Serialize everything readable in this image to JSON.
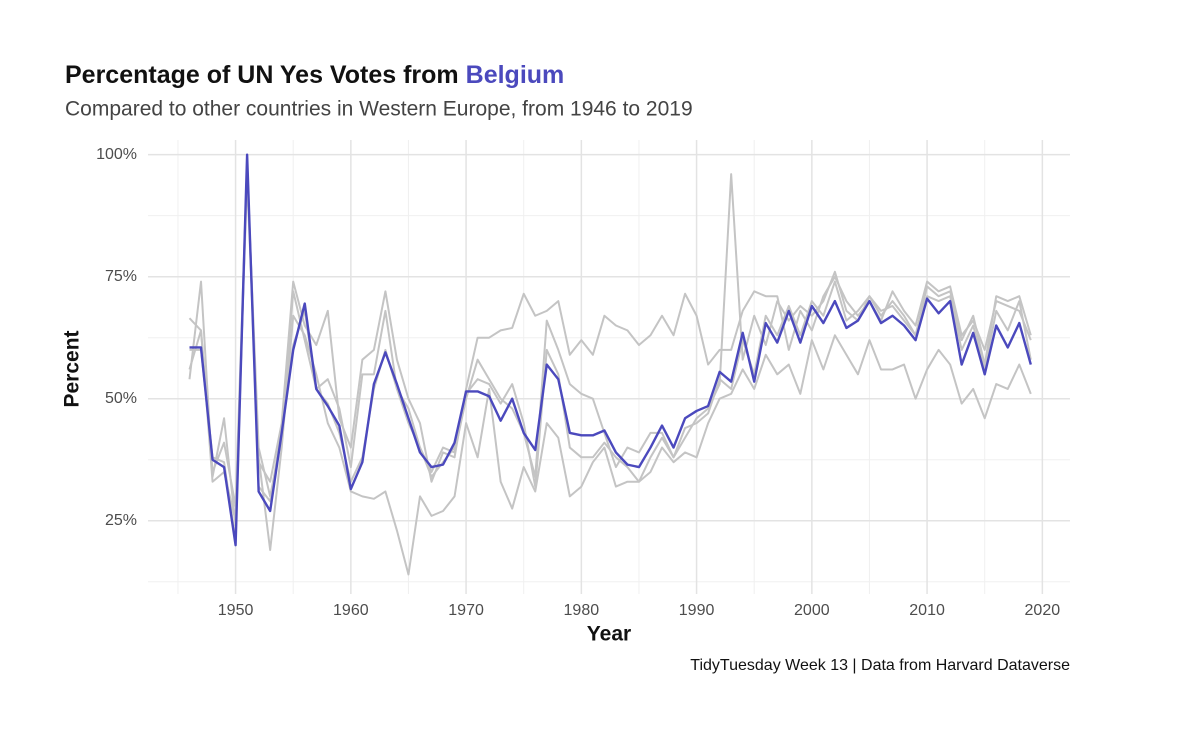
{
  "chart_data": {
    "type": "line",
    "title": "Percentage of UN Yes Votes from",
    "subtitle": "Compared to other countries in Western Europe, from 1946 to 2019",
    "x_label": "Year",
    "y_label": "Percent",
    "caption": "TidyTuesday Week 13 | Data from Harvard Dataverse",
    "x": [
      1946,
      1947,
      1948,
      1949,
      1950,
      1951,
      1952,
      1953,
      1954,
      1955,
      1956,
      1957,
      1958,
      1959,
      1960,
      1961,
      1962,
      1963,
      1964,
      1965,
      1966,
      1967,
      1968,
      1969,
      1970,
      1971,
      1972,
      1973,
      1974,
      1975,
      1976,
      1977,
      1978,
      1979,
      1980,
      1981,
      1982,
      1983,
      1984,
      1985,
      1986,
      1987,
      1988,
      1989,
      1990,
      1991,
      1992,
      1993,
      1994,
      1995,
      1996,
      1997,
      1998,
      1999,
      2000,
      2001,
      2002,
      2003,
      2004,
      2005,
      2006,
      2007,
      2008,
      2009,
      2010,
      2011,
      2012,
      2013,
      2014,
      2015,
      2016,
      2017,
      2018,
      2019
    ],
    "series": [
      {
        "name": "Belgium",
        "color": "#4b49bd",
        "values": [
          60.5,
          60.5,
          37.5,
          36,
          20,
          100,
          31,
          27,
          43,
          60,
          69.5,
          52,
          48.5,
          44.5,
          31.5,
          37,
          53,
          59.5,
          53,
          46,
          39,
          36,
          36.5,
          41,
          51.5,
          51.5,
          50.5,
          45.5,
          50,
          43,
          39.5,
          57,
          54,
          43,
          42.5,
          42.5,
          43.5,
          39,
          36.5,
          36,
          40,
          44.5,
          40,
          46,
          47.5,
          48.5,
          55.5,
          53.5,
          63.5,
          53.5,
          65.5,
          61.5,
          68,
          61.5,
          69,
          65.5,
          70,
          64.5,
          66,
          70,
          65.5,
          67,
          65,
          62,
          70.5,
          67.5,
          70,
          57,
          63.5,
          55,
          65,
          60.5,
          65.5,
          57
        ]
      },
      {
        "color": "#c4c4c4",
        "values": [
          56,
          64,
          33,
          35,
          25,
          95,
          38,
          19,
          40,
          67,
          63,
          55,
          45,
          40,
          31,
          30,
          29.5,
          31,
          23,
          14,
          30,
          26,
          27,
          30,
          45,
          38,
          52,
          33,
          27.5,
          36,
          31,
          45,
          42,
          30,
          32,
          37,
          40,
          32,
          33,
          33,
          35,
          40,
          37,
          39,
          38,
          45,
          50,
          51,
          56,
          52,
          59,
          55,
          57,
          51,
          62,
          56,
          63,
          59,
          55,
          62,
          56,
          56,
          57,
          50,
          56,
          60,
          57,
          49,
          52,
          46,
          53,
          52,
          57,
          51
        ]
      },
      {
        "color": "#c4c4c4",
        "values": [
          66.5,
          64,
          35,
          41,
          28,
          98,
          37,
          33,
          45,
          74,
          65,
          61,
          68,
          46,
          40,
          58,
          60,
          72,
          58,
          50,
          45,
          33,
          39,
          38,
          52,
          62.5,
          62.5,
          64,
          64.5,
          71.5,
          67,
          68,
          70,
          59,
          62,
          59,
          67,
          65,
          64,
          61,
          63,
          67,
          63,
          71.5,
          67,
          57,
          60,
          60,
          68,
          72,
          71,
          71,
          60,
          68,
          64,
          71,
          75,
          70,
          67,
          70,
          66,
          72,
          68,
          65,
          74,
          72,
          73,
          63,
          66,
          60,
          70,
          69,
          68,
          62
        ]
      },
      {
        "color": "#c4c4c4",
        "values": [
          54,
          74,
          34,
          46,
          24,
          97,
          40,
          30,
          42,
          72,
          62,
          52,
          54,
          48,
          36,
          55,
          55,
          68,
          52,
          48,
          40,
          35,
          40,
          39,
          50,
          58,
          54,
          50,
          48,
          43,
          34,
          66,
          60,
          53,
          51,
          50,
          43,
          36,
          40,
          39,
          43,
          43,
          38,
          42,
          46,
          48,
          53,
          96,
          58,
          67,
          61,
          70,
          66,
          69,
          67,
          70,
          76,
          68,
          66,
          71,
          68,
          69,
          66,
          63,
          73,
          71,
          72,
          62,
          67,
          57,
          71,
          70,
          71,
          63
        ]
      },
      {
        "color": "#c4c4c4",
        "values": [
          60,
          60,
          38,
          37,
          21,
          99,
          32,
          29,
          44,
          61,
          68,
          52,
          49,
          43,
          33,
          38,
          52,
          60,
          52,
          45,
          40,
          34,
          37,
          40,
          51,
          54,
          53,
          49,
          53,
          45,
          32,
          60,
          55,
          40,
          38,
          38,
          41,
          38,
          36,
          33,
          38,
          42,
          38,
          44,
          45,
          47,
          54,
          52,
          62,
          55,
          67,
          63,
          69,
          63,
          70,
          67,
          74,
          66,
          68,
          71,
          67,
          70,
          67,
          63,
          71,
          70,
          71,
          60,
          65,
          56,
          68,
          64,
          70,
          58
        ]
      }
    ],
    "xlim": [
      1942.4,
      2022.4
    ],
    "ylim": [
      10,
      103
    ],
    "xticks": [
      1950,
      1960,
      1970,
      1980,
      1990,
      2000,
      2010,
      2020
    ],
    "yticks": [
      {
        "value": 25,
        "label": "25%"
      },
      {
        "value": 50,
        "label": "50%"
      },
      {
        "value": 75,
        "label": "75%"
      },
      {
        "value": 100,
        "label": "100%"
      }
    ],
    "x_minor_ticks": [
      1945,
      1955,
      1965,
      1975,
      1985,
      1995,
      2005,
      2015
    ],
    "y_minor_ticks": [
      12.5,
      37.5,
      62.5,
      87.5
    ],
    "grid": true
  }
}
